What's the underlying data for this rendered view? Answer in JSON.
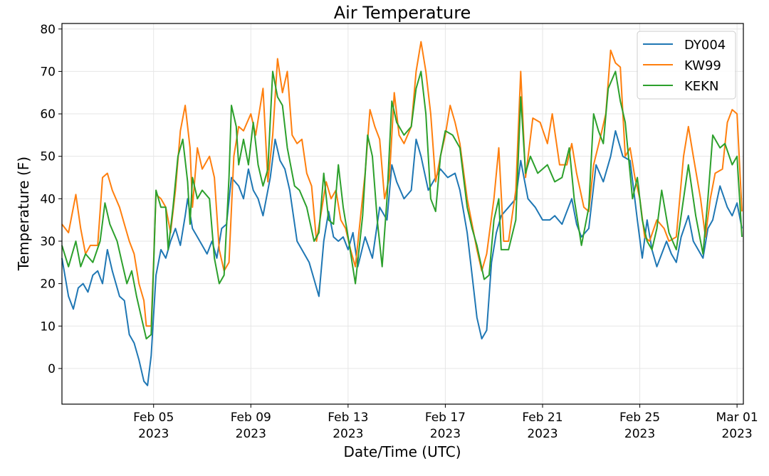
{
  "chart_data": {
    "type": "line",
    "title": "Air Temperature",
    "xlabel": "Date/Time (UTC)",
    "ylabel": "Temperature (F)",
    "x_units": "day of February 2023 (29 = Mar 01)",
    "xlim": [
      1.23,
      29.26
    ],
    "ylim": [
      -8.4,
      81.3
    ],
    "grid": true,
    "legend_placement": "top-right",
    "yticks": [
      0,
      10,
      20,
      30,
      40,
      50,
      60,
      70,
      80
    ],
    "ytick_labels": [
      "0",
      "10",
      "20",
      "30",
      "40",
      "50",
      "60",
      "70",
      "80"
    ],
    "xticks": [
      5,
      9,
      13,
      17,
      21,
      25,
      29
    ],
    "xtick_labels": [
      {
        "line1": "Feb 05",
        "line2": "2023"
      },
      {
        "line1": "Feb 09",
        "line2": "2023"
      },
      {
        "line1": "Feb 13",
        "line2": "2023"
      },
      {
        "line1": "Feb 17",
        "line2": "2023"
      },
      {
        "line1": "Feb 21",
        "line2": "2023"
      },
      {
        "line1": "Feb 25",
        "line2": "2023"
      },
      {
        "line1": "Mar 01",
        "line2": "2023"
      }
    ],
    "series": [
      {
        "name": "DY004",
        "color": "#1f77b4",
        "x": [
          1.23,
          1.5,
          1.7,
          1.9,
          2.1,
          2.3,
          2.5,
          2.7,
          2.9,
          3.1,
          3.3,
          3.6,
          3.8,
          4.0,
          4.2,
          4.4,
          4.6,
          4.75,
          4.9,
          5.1,
          5.3,
          5.5,
          5.7,
          5.9,
          6.1,
          6.3,
          6.4,
          6.6,
          6.8,
          7.0,
          7.2,
          7.4,
          7.6,
          7.8,
          8.0,
          8.2,
          8.5,
          8.7,
          8.9,
          9.1,
          9.3,
          9.5,
          9.8,
          10.0,
          10.2,
          10.4,
          10.6,
          10.9,
          11.1,
          11.4,
          11.6,
          11.8,
          12.0,
          12.2,
          12.4,
          12.6,
          12.8,
          13.0,
          13.2,
          13.4,
          13.7,
          14.0,
          14.3,
          14.6,
          14.8,
          15.0,
          15.3,
          15.6,
          15.8,
          16.0,
          16.3,
          16.5,
          16.8,
          17.1,
          17.4,
          17.6,
          17.9,
          18.1,
          18.3,
          18.5,
          18.7,
          18.9,
          19.1,
          19.3,
          19.6,
          19.9,
          20.1,
          20.4,
          20.7,
          21.0,
          21.3,
          21.5,
          21.8,
          22.0,
          22.2,
          22.4,
          22.6,
          22.9,
          23.2,
          23.5,
          23.8,
          24.0,
          24.3,
          24.6,
          24.9,
          25.1,
          25.3,
          25.5,
          25.7,
          25.9,
          26.1,
          26.3,
          26.5,
          26.7,
          27.0,
          27.2,
          27.4,
          27.6,
          27.8,
          28.0,
          28.3,
          28.6,
          28.8,
          29.0,
          29.2
        ],
        "y": [
          26,
          17,
          14,
          19,
          20,
          18,
          22,
          23,
          20,
          28,
          23,
          17,
          16,
          8,
          6,
          2,
          -3,
          -4,
          3,
          22,
          28,
          26,
          30,
          33,
          29,
          36,
          40,
          33,
          31,
          29,
          27,
          30,
          26,
          33,
          34,
          45,
          43,
          40,
          47,
          42,
          40,
          36,
          45,
          54,
          49,
          47,
          42,
          30,
          28,
          25,
          21,
          17,
          30,
          37,
          31,
          30,
          31,
          28,
          32,
          24,
          31,
          26,
          38,
          35,
          48,
          44,
          40,
          42,
          54,
          50,
          42,
          44,
          47,
          45,
          46,
          42,
          32,
          22,
          12,
          7,
          9,
          25,
          32,
          36,
          38,
          40,
          49,
          40,
          38,
          35,
          35,
          36,
          34,
          37,
          40,
          34,
          31,
          33,
          48,
          44,
          50,
          56,
          50,
          49,
          35,
          26,
          35,
          28,
          24,
          27,
          30,
          27,
          25,
          31,
          36,
          30,
          28,
          26,
          33,
          35,
          43,
          38,
          36,
          39,
          33
        ]
      },
      {
        "name": "KW99",
        "color": "#ff7f0e",
        "x": [
          1.23,
          1.5,
          1.8,
          2.0,
          2.2,
          2.4,
          2.7,
          2.9,
          3.1,
          3.3,
          3.6,
          3.8,
          4.0,
          4.2,
          4.4,
          4.6,
          4.7,
          4.9,
          5.0,
          5.1,
          5.3,
          5.5,
          5.7,
          5.9,
          6.1,
          6.3,
          6.5,
          6.6,
          6.8,
          7.0,
          7.3,
          7.5,
          7.7,
          7.9,
          8.1,
          8.3,
          8.5,
          8.7,
          9.0,
          9.2,
          9.5,
          9.7,
          9.9,
          10.1,
          10.3,
          10.5,
          10.7,
          10.9,
          11.1,
          11.3,
          11.5,
          11.7,
          11.9,
          12.1,
          12.3,
          12.5,
          12.7,
          12.9,
          13.1,
          13.3,
          13.5,
          13.7,
          13.9,
          14.1,
          14.3,
          14.5,
          14.7,
          14.9,
          15.1,
          15.3,
          15.6,
          15.8,
          16.0,
          16.2,
          16.4,
          16.6,
          16.8,
          17.0,
          17.2,
          17.4,
          17.6,
          17.9,
          18.1,
          18.3,
          18.5,
          18.7,
          19.0,
          19.2,
          19.4,
          19.6,
          19.9,
          20.1,
          20.3,
          20.6,
          20.9,
          21.2,
          21.4,
          21.7,
          22.0,
          22.2,
          22.4,
          22.7,
          22.9,
          23.1,
          23.4,
          23.6,
          23.8,
          24.0,
          24.2,
          24.4,
          24.6,
          24.8,
          25.0,
          25.2,
          25.4,
          25.7,
          26.0,
          26.2,
          26.5,
          26.8,
          27.0,
          27.2,
          27.5,
          27.7,
          27.9,
          28.1,
          28.4,
          28.6,
          28.8,
          29.0,
          29.2
        ],
        "y": [
          34,
          32,
          41,
          33,
          27,
          29,
          29,
          45,
          46,
          42,
          38,
          34,
          30,
          27,
          20,
          16,
          10,
          10,
          25,
          41,
          40,
          38,
          32,
          42,
          56,
          62,
          52,
          38,
          52,
          47,
          50,
          45,
          28,
          23,
          25,
          50,
          57,
          56,
          60,
          55,
          66,
          44,
          55,
          73,
          65,
          70,
          55,
          53,
          54,
          46,
          43,
          30,
          37,
          44,
          40,
          42,
          35,
          33,
          28,
          24,
          35,
          46,
          61,
          57,
          54,
          40,
          45,
          65,
          55,
          53,
          57,
          70,
          77,
          70,
          60,
          44,
          50,
          55,
          62,
          58,
          53,
          40,
          34,
          28,
          23,
          27,
          40,
          52,
          30,
          30,
          42,
          70,
          45,
          59,
          58,
          53,
          60,
          48,
          48,
          53,
          46,
          38,
          37,
          48,
          55,
          60,
          75,
          72,
          71,
          50,
          52,
          45,
          40,
          31,
          30,
          35,
          33,
          30,
          31,
          50,
          57,
          50,
          40,
          31,
          40,
          46,
          47,
          58,
          61,
          60,
          37
        ]
      },
      {
        "name": "KEKN",
        "color": "#2ca02c",
        "x": [
          1.23,
          1.5,
          1.8,
          2.0,
          2.2,
          2.5,
          2.8,
          3.0,
          3.2,
          3.5,
          3.7,
          3.9,
          4.1,
          4.3,
          4.5,
          4.7,
          4.9,
          5.0,
          5.1,
          5.3,
          5.5,
          5.6,
          5.8,
          6.0,
          6.2,
          6.4,
          6.5,
          6.6,
          6.8,
          7.0,
          7.3,
          7.5,
          7.7,
          7.9,
          8.1,
          8.2,
          8.4,
          8.5,
          8.7,
          8.9,
          9.1,
          9.3,
          9.5,
          9.7,
          9.9,
          10.1,
          10.3,
          10.5,
          10.8,
          11.0,
          11.3,
          11.6,
          11.8,
          12.0,
          12.2,
          12.4,
          12.6,
          12.8,
          13.0,
          13.3,
          13.6,
          13.8,
          14.0,
          14.2,
          14.4,
          14.6,
          14.8,
          15.0,
          15.3,
          15.6,
          15.8,
          16.0,
          16.2,
          16.4,
          16.6,
          16.8,
          17.0,
          17.3,
          17.6,
          17.9,
          18.1,
          18.3,
          18.6,
          18.8,
          19.0,
          19.2,
          19.3,
          19.6,
          19.9,
          20.1,
          20.3,
          20.5,
          20.8,
          21.2,
          21.5,
          21.8,
          22.1,
          22.3,
          22.6,
          22.9,
          23.1,
          23.3,
          23.5,
          23.7,
          24.0,
          24.2,
          24.4,
          24.7,
          24.9,
          25.1,
          25.3,
          25.5,
          25.7,
          25.9,
          26.2,
          26.5,
          26.8,
          27.0,
          27.3,
          27.6,
          27.8,
          28.0,
          28.3,
          28.5,
          28.8,
          29.0,
          29.2
        ],
        "y": [
          29,
          24,
          30,
          24,
          27,
          25,
          30,
          39,
          34,
          30,
          25,
          20,
          23,
          17,
          12,
          7,
          8,
          24,
          42,
          38,
          38,
          28,
          38,
          50,
          54,
          44,
          34,
          45,
          40,
          42,
          40,
          26,
          20,
          22,
          45,
          62,
          57,
          48,
          54,
          48,
          58,
          48,
          43,
          47,
          70,
          64,
          62,
          52,
          43,
          42,
          38,
          30,
          32,
          46,
          35,
          34,
          48,
          38,
          31,
          20,
          36,
          55,
          50,
          35,
          24,
          40,
          63,
          58,
          55,
          57,
          66,
          70,
          60,
          40,
          37,
          50,
          56,
          55,
          52,
          38,
          33,
          29,
          21,
          22,
          35,
          40,
          28,
          28,
          35,
          64,
          46,
          50,
          46,
          48,
          44,
          45,
          52,
          40,
          29,
          38,
          60,
          56,
          53,
          66,
          70,
          63,
          58,
          40,
          45,
          35,
          30,
          28,
          33,
          42,
          32,
          28,
          40,
          48,
          36,
          27,
          40,
          55,
          52,
          53,
          48,
          50,
          31
        ]
      }
    ]
  }
}
